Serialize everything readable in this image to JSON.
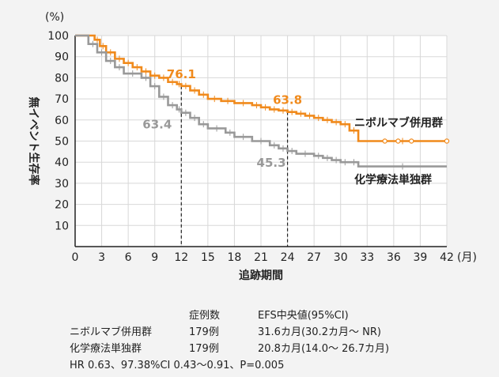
{
  "chart_data": {
    "type": "line",
    "step": true,
    "x_unit": "(月)",
    "y_unit": "(%)",
    "xlabel": "追跡期間",
    "ylabel": "無イベント生存率",
    "xlim": [
      0,
      42
    ],
    "ylim": [
      0,
      100
    ],
    "x_ticks": [
      0,
      3,
      6,
      9,
      12,
      15,
      18,
      21,
      24,
      27,
      30,
      33,
      36,
      39,
      42
    ],
    "y_ticks": [
      10,
      20,
      30,
      40,
      50,
      60,
      70,
      80,
      90,
      100
    ],
    "grid": true,
    "series": [
      {
        "name": "ニボルマブ併用群",
        "color": "#f08a1c",
        "x": [
          0,
          2.2,
          2.8,
          3.5,
          4.5,
          5.5,
          6.5,
          7.5,
          8.5,
          9.5,
          10.5,
          11.5,
          12,
          13,
          14,
          15,
          16.5,
          18,
          20,
          21,
          22,
          23,
          24,
          25,
          26,
          27,
          28,
          29,
          30,
          31,
          32,
          42
        ],
        "y": [
          100,
          98,
          95,
          92,
          89,
          87,
          85,
          83,
          81,
          80,
          78,
          77,
          76.1,
          74,
          72,
          70,
          69,
          68,
          67,
          66,
          65,
          64.5,
          63.8,
          63,
          62,
          61,
          60,
          59,
          58,
          55,
          50,
          50
        ]
      },
      {
        "name": "化学療法単独群",
        "color": "#999999",
        "x": [
          0,
          1.5,
          2.5,
          3.5,
          4.5,
          5.5,
          7.5,
          8.5,
          9.5,
          10.5,
          11.5,
          12,
          13,
          14,
          15,
          17,
          18,
          20,
          22,
          23,
          24,
          25,
          27,
          28,
          29,
          30,
          31,
          32,
          42
        ],
        "y": [
          100,
          96,
          92,
          88,
          85,
          82,
          80,
          76,
          71,
          67,
          65,
          63.4,
          61,
          58,
          56,
          54,
          52,
          50,
          48,
          46.5,
          45.3,
          44,
          43,
          42,
          41,
          40,
          40,
          38,
          38
        ]
      }
    ],
    "annotations": [
      {
        "x": 12,
        "y": 76.1,
        "text": "76.1",
        "series": 0
      },
      {
        "x": 12,
        "y": 63.4,
        "text": "63.4",
        "series": 1
      },
      {
        "x": 24,
        "y": 63.8,
        "text": "63.8",
        "series": 0
      },
      {
        "x": 24,
        "y": 45.3,
        "text": "45.3",
        "series": 1
      }
    ],
    "reference_lines_x": [
      12,
      24
    ]
  },
  "stats_table": {
    "header_n": "症例数",
    "header_efs": "EFS中央値(95%CI)",
    "rows": [
      {
        "group": "ニボルマブ併用群",
        "n": "179例",
        "efs": "31.6カ月(30.2カ月〜 NR)"
      },
      {
        "group": "化学療法単独群",
        "n": "179例",
        "efs": "20.8カ月(14.0〜 26.7カ月)"
      }
    ],
    "footnote": "HR 0.63、97.38%CI 0.43〜0.91、P=0.005"
  }
}
